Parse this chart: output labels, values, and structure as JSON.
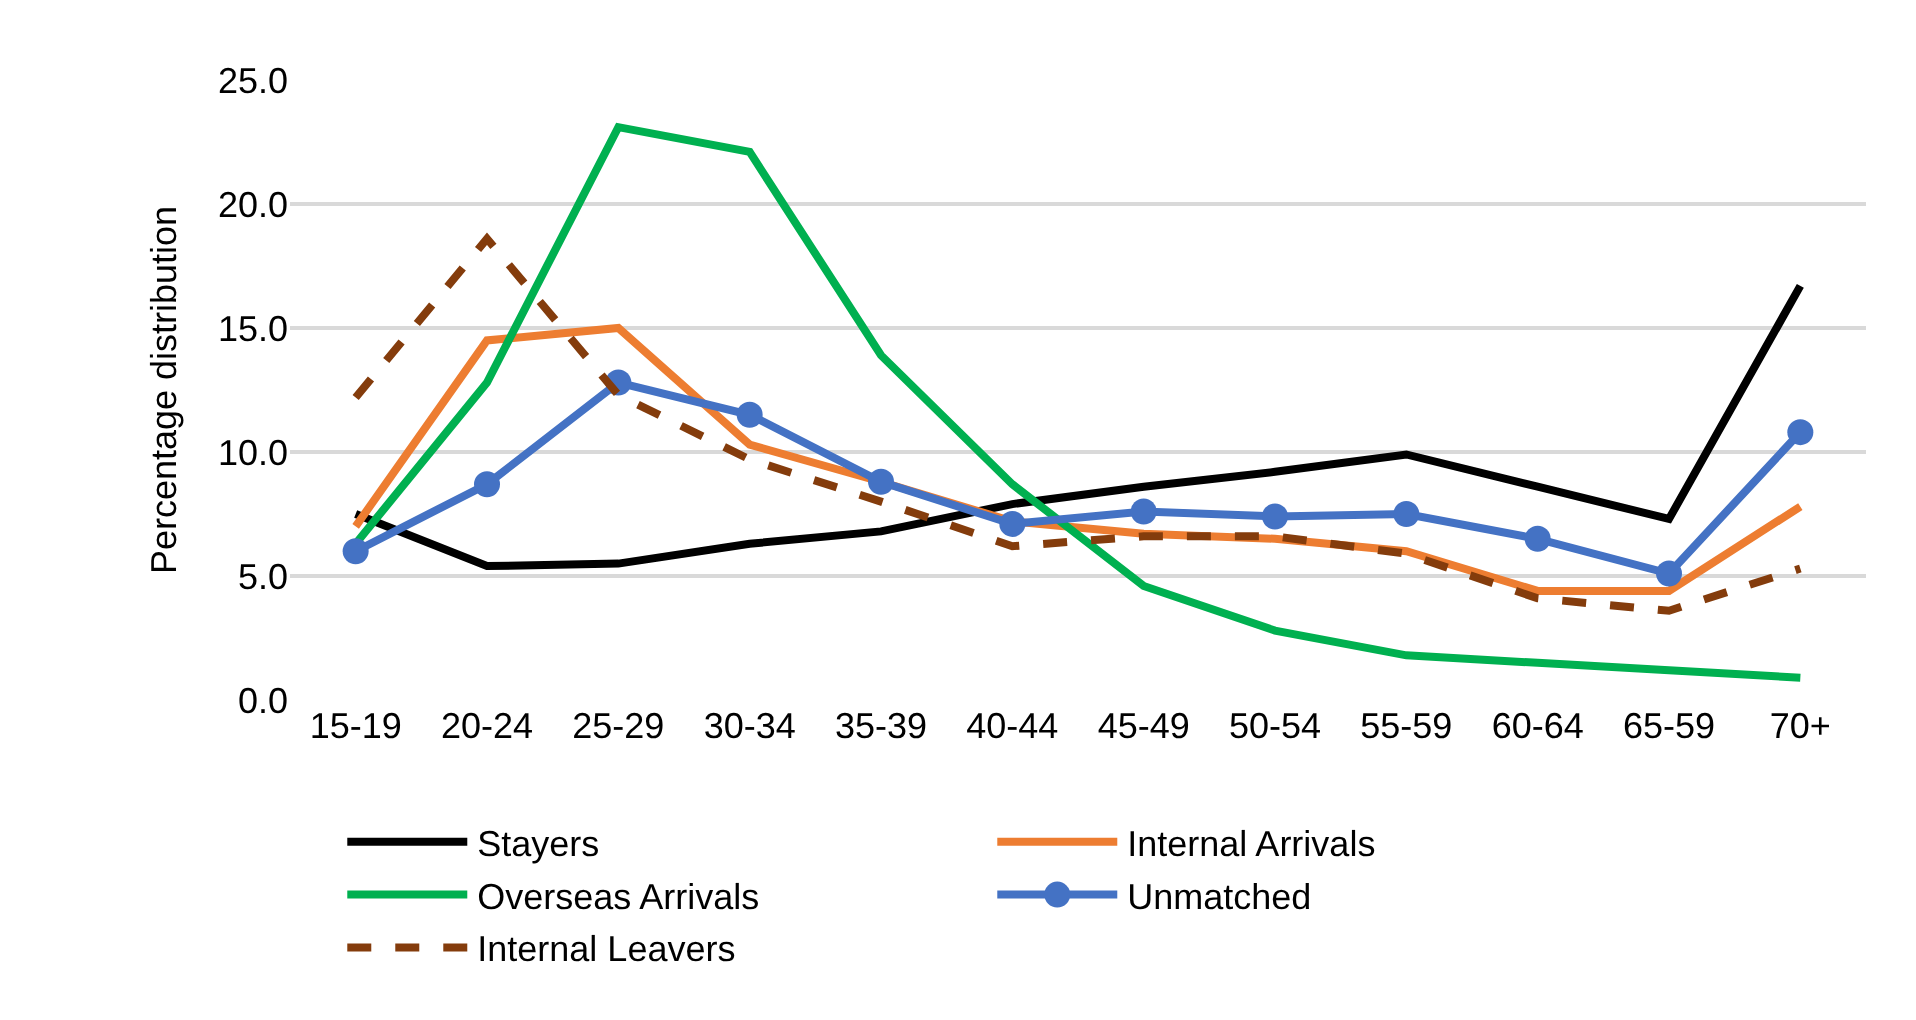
{
  "chart_data": {
    "type": "line",
    "ylabel": "Percentage distribution",
    "categories": [
      "15-19",
      "20-24",
      "25-29",
      "30-34",
      "35-39",
      "40-44",
      "45-49",
      "50-54",
      "55-59",
      "60-64",
      "65-59",
      "70+"
    ],
    "series": [
      {
        "name": "Stayers",
        "color": "#000000",
        "values": [
          7.5,
          5.4,
          5.5,
          6.3,
          6.8,
          7.9,
          8.6,
          9.2,
          9.9,
          8.6,
          7.3,
          16.7
        ]
      },
      {
        "name": "Internal Arrivals",
        "color": "#ed7d31",
        "values": [
          7.0,
          14.5,
          15.0,
          10.3,
          8.8,
          7.2,
          6.7,
          6.5,
          6.0,
          4.4,
          4.4,
          7.8
        ]
      },
      {
        "name": "Overseas Arrivals",
        "color": "#00b050",
        "values": [
          6.3,
          12.8,
          23.1,
          22.1,
          13.9,
          8.7,
          4.6,
          2.8,
          1.8,
          1.5,
          1.2,
          0.9
        ]
      },
      {
        "name": "Unmatched",
        "color": "#4472c4",
        "marker": "circle",
        "values": [
          6.0,
          8.7,
          12.8,
          11.5,
          8.8,
          7.1,
          7.6,
          7.4,
          7.5,
          6.5,
          5.1,
          10.8
        ]
      },
      {
        "name": "Internal Leavers",
        "color": "#843c0c",
        "line_style": "dashed",
        "values": [
          12.2,
          18.6,
          12.3,
          9.7,
          8.0,
          6.2,
          6.6,
          6.6,
          5.9,
          4.1,
          3.6,
          5.3
        ]
      }
    ],
    "ylim": [
      0,
      25
    ],
    "yticks": [
      {
        "value": 0,
        "label": "0.0"
      },
      {
        "value": 5,
        "label": "5.0"
      },
      {
        "value": 10,
        "label": "10.0"
      },
      {
        "value": 15,
        "label": "15.0"
      },
      {
        "value": 20,
        "label": "20.0"
      },
      {
        "value": 25,
        "label": "25.0"
      }
    ],
    "grid": "y",
    "legend": "bottom",
    "marker": "none",
    "line_style": "solid"
  }
}
